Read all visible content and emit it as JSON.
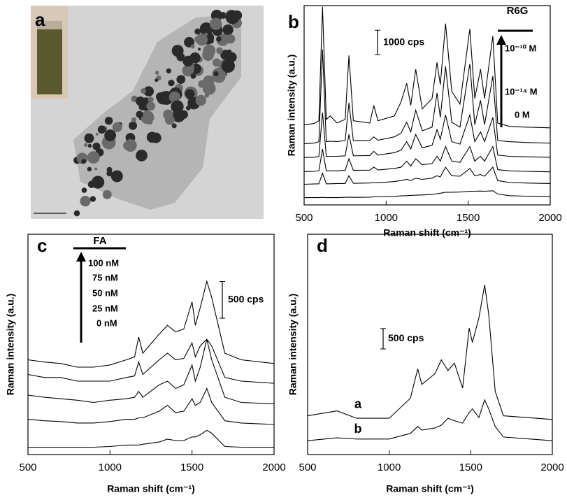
{
  "image_panel": {
    "label": "a"
  },
  "chart_data": [
    {
      "type": "line",
      "label": "b",
      "x_label": "Raman shift (cm⁻¹)",
      "y_label": "Raman intensity (a.u.)",
      "xlim": [
        500,
        2000
      ],
      "xticks": [
        500,
        1000,
        1500,
        2000
      ],
      "ylim": [
        0,
        8200
      ],
      "x": [
        500,
        560,
        590,
        612,
        635,
        660,
        700,
        750,
        773,
        800,
        900,
        925,
        950,
        1050,
        1090,
        1125,
        1150,
        1180,
        1220,
        1280,
        1310,
        1330,
        1362,
        1400,
        1450,
        1510,
        1540,
        1575,
        1600,
        1650,
        1680,
        1750,
        1850,
        2000
      ],
      "series": [
        {
          "color": "#000000",
          "values": [
            300,
            300,
            300,
            310,
            300,
            300,
            300,
            310,
            320,
            310,
            320,
            330,
            330,
            350,
            370,
            380,
            390,
            400,
            410,
            430,
            460,
            480,
            520,
            520,
            530,
            560,
            560,
            570,
            560,
            580,
            450,
            380,
            360,
            340
          ]
        },
        {
          "color": "#000000",
          "values": [
            850,
            860,
            870,
            1300,
            870,
            870,
            880,
            880,
            1200,
            890,
            900,
            920,
            910,
            960,
            1000,
            1050,
            1000,
            1100,
            1050,
            1100,
            1200,
            1150,
            1550,
            1200,
            1180,
            1500,
            1200,
            1250,
            1180,
            1550,
            1000,
            920,
            900,
            880
          ]
        },
        {
          "color": "#000000",
          "values": [
            1370,
            1380,
            1400,
            2300,
            1400,
            1400,
            1400,
            1420,
            1900,
            1420,
            1430,
            1550,
            1440,
            1500,
            1550,
            1800,
            1600,
            1900,
            1650,
            1700,
            2000,
            1800,
            2400,
            1800,
            1750,
            2400,
            1800,
            2000,
            1800,
            2400,
            1450,
            1400,
            1380,
            1360
          ]
        },
        {
          "color": "#000000",
          "values": [
            1950,
            1960,
            2000,
            3800,
            2000,
            2000,
            2000,
            2020,
            2900,
            2020,
            2030,
            2200,
            2050,
            2150,
            2250,
            2600,
            2300,
            2900,
            2350,
            2450,
            3100,
            2700,
            3700,
            2600,
            2500,
            3700,
            2600,
            3000,
            2600,
            3600,
            2050,
            2000,
            1980,
            1960
          ]
        },
        {
          "color": "#000000",
          "values": [
            2520,
            2540,
            2600,
            6400,
            2600,
            2620,
            2600,
            2650,
            4200,
            2650,
            2650,
            2800,
            2660,
            2800,
            2950,
            3400,
            3000,
            3900,
            3050,
            3200,
            4600,
            3600,
            5700,
            3400,
            3200,
            5800,
            3300,
            4300,
            3300,
            5300,
            2650,
            2600,
            2570,
            2540
          ]
        },
        {
          "color": "#000000",
          "values": [
            3290,
            3350,
            3460,
            8150,
            3520,
            3660,
            3370,
            3520,
            6150,
            3460,
            3370,
            4090,
            3460,
            3660,
            4230,
            5000,
            4090,
            5580,
            3950,
            4380,
            5860,
            4950,
            7460,
            4660,
            4150,
            7240,
            4380,
            5580,
            4380,
            6950,
            3370,
            3230,
            3200,
            3170
          ]
        }
      ],
      "scale_bar": {
        "value": 1000,
        "label": "1000 cps"
      },
      "annotations": [
        "R6G",
        "10⁻¹⁰ M",
        "10⁻¹⁴ M",
        "0 M"
      ]
    },
    {
      "type": "line",
      "label": "c",
      "x_label": "Raman shift (cm⁻¹)",
      "y_label": "Raman intensity (a.u.)",
      "xlim": [
        500,
        2000
      ],
      "xticks": [
        500,
        1000,
        1500,
        2000
      ],
      "ylim": [
        0,
        3000
      ],
      "x": [
        500,
        600,
        700,
        800,
        900,
        1000,
        1100,
        1150,
        1175,
        1200,
        1300,
        1350,
        1400,
        1450,
        1500,
        1520,
        1550,
        1590,
        1620,
        1700,
        1800,
        2000
      ],
      "series": [
        {
          "color": "#000000",
          "values": [
            1290,
            1260,
            1240,
            1190,
            1190,
            1220,
            1290,
            1330,
            1600,
            1380,
            1640,
            1760,
            1670,
            1710,
            2080,
            1760,
            2000,
            2360,
            2140,
            1380,
            1290,
            1240
          ]
        },
        {
          "color": "#000000",
          "values": [
            1090,
            1050,
            1050,
            1000,
            1000,
            1000,
            1050,
            1070,
            1260,
            1090,
            1290,
            1380,
            1290,
            1310,
            1520,
            1330,
            1480,
            1570,
            1480,
            1050,
            1000,
            970
          ]
        },
        {
          "color": "#000000",
          "values": [
            810,
            780,
            760,
            740,
            710,
            740,
            760,
            780,
            860,
            780,
            950,
            1000,
            900,
            950,
            1220,
            1000,
            1190,
            1570,
            1290,
            780,
            710,
            690
          ]
        },
        {
          "color": "#000000",
          "values": [
            480,
            460,
            450,
            430,
            430,
            450,
            480,
            480,
            500,
            500,
            590,
            670,
            570,
            590,
            760,
            670,
            710,
            900,
            710,
            460,
            430,
            410
          ]
        },
        {
          "color": "#000000",
          "values": [
            100,
            100,
            100,
            100,
            100,
            110,
            130,
            130,
            130,
            140,
            170,
            210,
            190,
            190,
            240,
            240,
            270,
            330,
            290,
            110,
            100,
            100
          ]
        }
      ],
      "scale_bar": {
        "value": 500,
        "label": "500 cps"
      },
      "annotations": [
        "FA",
        "100 nM",
        "75 nM",
        "50 nM",
        "25 nM",
        "0 nM"
      ]
    },
    {
      "type": "line",
      "label": "d",
      "x_label": "Raman shift (cm⁻¹)",
      "y_label": "Raman intensity (a.u.)",
      "xlim": [
        500,
        2000
      ],
      "xticks": [
        500,
        1000,
        1500,
        2000
      ],
      "ylim": [
        0,
        5400
      ],
      "x": [
        500,
        680,
        800,
        1000,
        1130,
        1175,
        1200,
        1280,
        1320,
        1360,
        1400,
        1450,
        1490,
        1510,
        1550,
        1585,
        1610,
        1650,
        1700,
        2000
      ],
      "series": [
        {
          "name": "a",
          "color": "#000000",
          "values": [
            950,
            1070,
            890,
            890,
            1380,
            2100,
            1720,
            1980,
            2320,
            2060,
            2240,
            1630,
            3100,
            2750,
            3350,
            4160,
            3440,
            1550,
            950,
            860
          ]
        },
        {
          "name": "b",
          "color": "#000000",
          "values": [
            340,
            410,
            380,
            380,
            520,
            690,
            600,
            650,
            720,
            890,
            830,
            770,
            1030,
            1120,
            910,
            1340,
            1120,
            690,
            430,
            340
          ]
        }
      ],
      "scale_bar": {
        "value": 500,
        "label": "500 cps"
      }
    }
  ]
}
